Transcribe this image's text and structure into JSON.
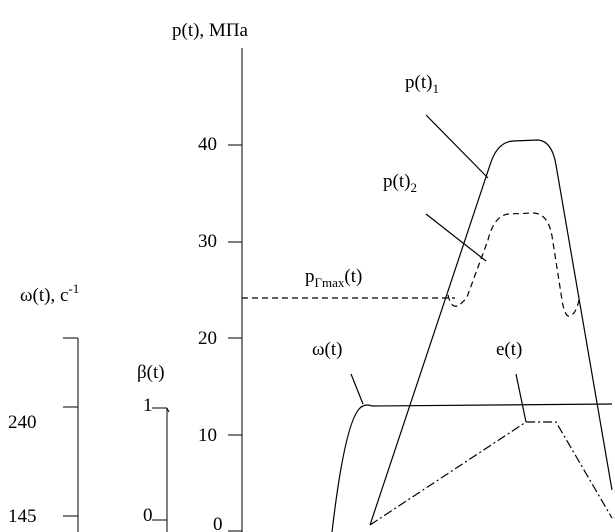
{
  "chart_data": {
    "type": "line",
    "y_axis_pressure": {
      "label": "p(t), МПа",
      "ticks": [
        "40",
        "30",
        "20",
        "10",
        "0"
      ],
      "tick_values": [
        40,
        30,
        20,
        10,
        0
      ],
      "ylim": [
        0,
        50
      ]
    },
    "y_axis_omega": {
      "label_main": "ω(t), c",
      "label_sup": "-1",
      "ticks": [
        "240",
        "145"
      ]
    },
    "y_axis_beta": {
      "label": "β(t)",
      "ticks": [
        "1",
        "0"
      ]
    },
    "series": [
      {
        "name": "p(t)",
        "name_sub": "1",
        "style": "solid"
      },
      {
        "name": "p(t)",
        "name_sub": "2",
        "style": "dashed"
      },
      {
        "name": "ω(t)",
        "style": "solid"
      },
      {
        "name": "e(t)",
        "style": "dash-dot"
      }
    ],
    "annotations": [
      {
        "label_main": "p",
        "label_sub": "Гmax",
        "label_suffix": "(t)",
        "pressure_value": 24,
        "style": "dashed-horizontal"
      }
    ],
    "grid": false
  }
}
